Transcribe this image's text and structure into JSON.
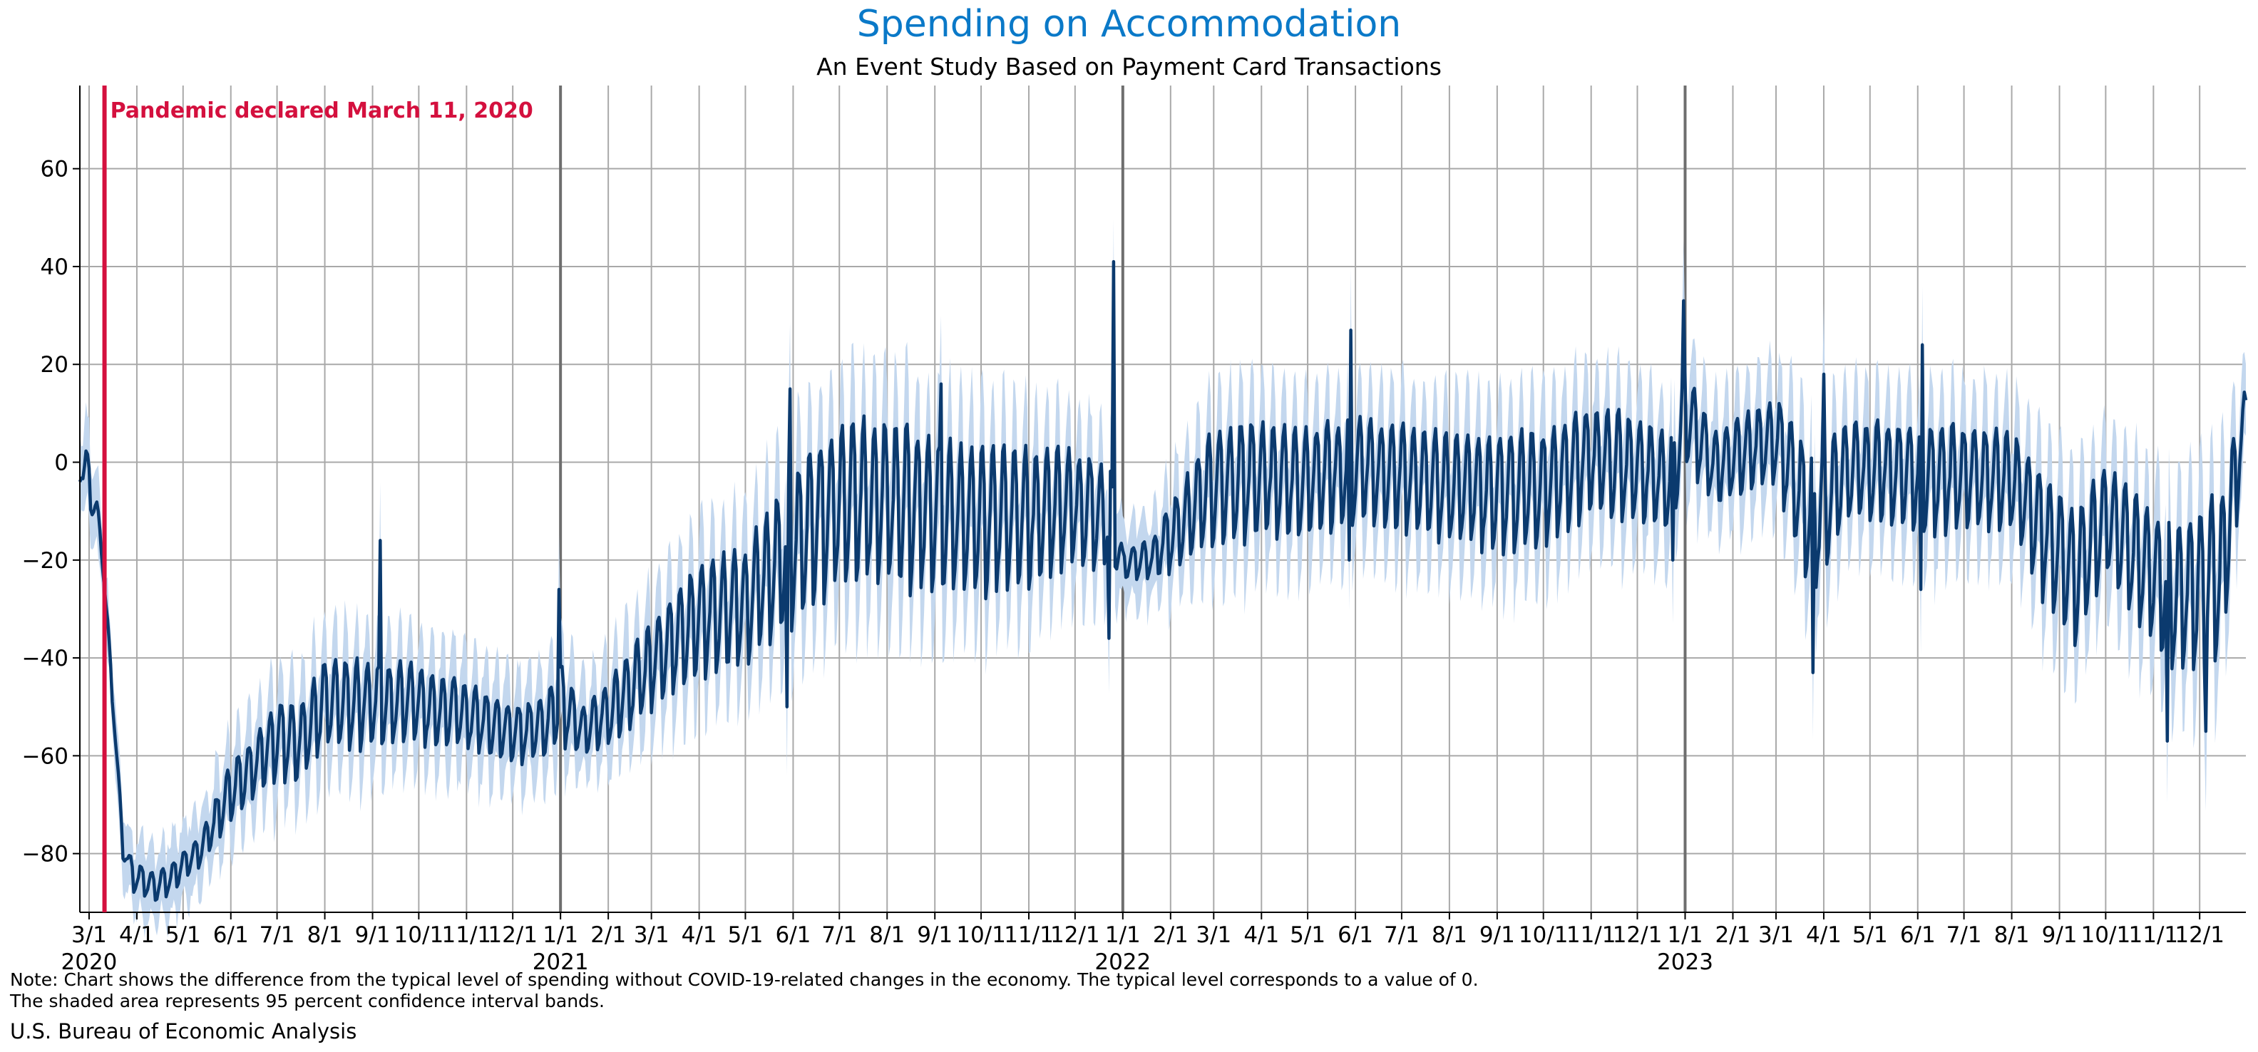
{
  "chart_data": {
    "type": "line",
    "title": "Spending on Accommodation",
    "subtitle": "An Event Study Based on Payment Card Transactions",
    "xlabel": "",
    "ylabel": "",
    "x_range": [
      "2020-02-24",
      "2023-12-31"
    ],
    "ylim": [
      -92,
      77
    ],
    "y_ticks": [
      -80,
      -60,
      -40,
      -20,
      0,
      20,
      40,
      60
    ],
    "grid": true,
    "x_ticks": [
      {
        "date": "2020-03-01",
        "label": "3/1"
      },
      {
        "date": "2020-04-01",
        "label": "4/1"
      },
      {
        "date": "2020-05-01",
        "label": "5/1"
      },
      {
        "date": "2020-06-01",
        "label": "6/1"
      },
      {
        "date": "2020-07-01",
        "label": "7/1"
      },
      {
        "date": "2020-08-01",
        "label": "8/1"
      },
      {
        "date": "2020-09-01",
        "label": "9/1"
      },
      {
        "date": "2020-10-01",
        "label": "10/1"
      },
      {
        "date": "2020-11-01",
        "label": "11/1"
      },
      {
        "date": "2020-12-01",
        "label": "12/1"
      },
      {
        "date": "2021-01-01",
        "label": "1/1"
      },
      {
        "date": "2021-02-01",
        "label": "2/1"
      },
      {
        "date": "2021-03-01",
        "label": "3/1"
      },
      {
        "date": "2021-04-01",
        "label": "4/1"
      },
      {
        "date": "2021-05-01",
        "label": "5/1"
      },
      {
        "date": "2021-06-01",
        "label": "6/1"
      },
      {
        "date": "2021-07-01",
        "label": "7/1"
      },
      {
        "date": "2021-08-01",
        "label": "8/1"
      },
      {
        "date": "2021-09-01",
        "label": "9/1"
      },
      {
        "date": "2021-10-01",
        "label": "10/1"
      },
      {
        "date": "2021-11-01",
        "label": "11/1"
      },
      {
        "date": "2021-12-01",
        "label": "12/1"
      },
      {
        "date": "2022-01-01",
        "label": "1/1"
      },
      {
        "date": "2022-02-01",
        "label": "2/1"
      },
      {
        "date": "2022-03-01",
        "label": "3/1"
      },
      {
        "date": "2022-04-01",
        "label": "4/1"
      },
      {
        "date": "2022-05-01",
        "label": "5/1"
      },
      {
        "date": "2022-06-01",
        "label": "6/1"
      },
      {
        "date": "2022-07-01",
        "label": "7/1"
      },
      {
        "date": "2022-08-01",
        "label": "8/1"
      },
      {
        "date": "2022-09-01",
        "label": "9/1"
      },
      {
        "date": "2022-10-01",
        "label": "10/1"
      },
      {
        "date": "2022-11-01",
        "label": "11/1"
      },
      {
        "date": "2022-12-01",
        "label": "12/1"
      },
      {
        "date": "2023-01-01",
        "label": "1/1"
      },
      {
        "date": "2023-02-01",
        "label": "2/1"
      },
      {
        "date": "2023-03-01",
        "label": "3/1"
      },
      {
        "date": "2023-04-01",
        "label": "4/1"
      },
      {
        "date": "2023-05-01",
        "label": "5/1"
      },
      {
        "date": "2023-06-01",
        "label": "6/1"
      },
      {
        "date": "2023-07-01",
        "label": "7/1"
      },
      {
        "date": "2023-08-01",
        "label": "8/1"
      },
      {
        "date": "2023-09-01",
        "label": "9/1"
      },
      {
        "date": "2023-10-01",
        "label": "10/1"
      },
      {
        "date": "2023-11-01",
        "label": "11/1"
      },
      {
        "date": "2023-12-01",
        "label": "12/1"
      }
    ],
    "year_labels": [
      {
        "date": "2020-03-01",
        "label": "2020"
      },
      {
        "date": "2021-01-01",
        "label": "2021"
      },
      {
        "date": "2022-01-01",
        "label": "2022"
      },
      {
        "date": "2023-01-01",
        "label": "2023"
      }
    ],
    "year_boundaries": [
      "2021-01-01",
      "2022-01-01",
      "2023-01-01"
    ],
    "event": {
      "date": "2020-03-11",
      "label": "Pandemic declared March 11, 2020",
      "color": "#d4103e"
    },
    "line_color": "#0b3a6e",
    "band_color": "#c3d7ee",
    "series": [
      {
        "values_kind": "weekly mean with weekday swing (daily series approximated)",
        "points": [
          {
            "date": "2020-02-24",
            "mean": 0,
            "amp": 4
          },
          {
            "date": "2020-03-02",
            "mean": -5,
            "amp": 6
          },
          {
            "date": "2020-03-09",
            "mean": -17,
            "amp": 2
          },
          {
            "date": "2020-03-16",
            "mean": -47,
            "amp": 2
          },
          {
            "date": "2020-03-23",
            "mean": -79,
            "amp": 2
          },
          {
            "date": "2020-03-30",
            "mean": -85,
            "amp": 3
          },
          {
            "date": "2020-04-06",
            "mean": -86,
            "amp": 3
          },
          {
            "date": "2020-04-13",
            "mean": -87,
            "amp": 3
          },
          {
            "date": "2020-04-20",
            "mean": -86,
            "amp": 3
          },
          {
            "date": "2020-04-27",
            "mean": -84,
            "amp": 3
          },
          {
            "date": "2020-05-04",
            "mean": -82,
            "amp": 3
          },
          {
            "date": "2020-05-11",
            "mean": -80,
            "amp": 3
          },
          {
            "date": "2020-05-18",
            "mean": -76,
            "amp": 4
          },
          {
            "date": "2020-05-25",
            "mean": -72,
            "amp": 5
          },
          {
            "date": "2020-06-01",
            "mean": -68,
            "amp": 6
          },
          {
            "date": "2020-06-15",
            "mean": -63,
            "amp": 6
          },
          {
            "date": "2020-07-01",
            "mean": -57,
            "amp": 8
          },
          {
            "date": "2020-07-15",
            "mean": -58,
            "amp": 8
          },
          {
            "date": "2020-08-01",
            "mean": -50,
            "amp": 9
          },
          {
            "date": "2020-08-15",
            "mean": -50,
            "amp": 9
          },
          {
            "date": "2020-09-01",
            "mean": -50,
            "amp": 9
          },
          {
            "date": "2020-10-01",
            "mean": -50,
            "amp": 8
          },
          {
            "date": "2020-11-01",
            "mean": -52,
            "amp": 7
          },
          {
            "date": "2020-12-01",
            "mean": -56,
            "amp": 6
          },
          {
            "date": "2020-12-20",
            "mean": -55,
            "amp": 6
          },
          {
            "date": "2021-01-01",
            "mean": -50,
            "amp": 8
          },
          {
            "date": "2021-01-15",
            "mean": -55,
            "amp": 5
          },
          {
            "date": "2021-02-01",
            "mean": -52,
            "amp": 7
          },
          {
            "date": "2021-03-01",
            "mean": -42,
            "amp": 9
          },
          {
            "date": "2021-04-01",
            "mean": -33,
            "amp": 12
          },
          {
            "date": "2021-05-01",
            "mean": -30,
            "amp": 12
          },
          {
            "date": "2021-06-01",
            "mean": -18,
            "amp": 16
          },
          {
            "date": "2021-07-01",
            "mean": -10,
            "amp": 17
          },
          {
            "date": "2021-08-01",
            "mean": -9,
            "amp": 17
          },
          {
            "date": "2021-09-01",
            "mean": -12,
            "amp": 16
          },
          {
            "date": "2021-10-01",
            "mean": -13,
            "amp": 15
          },
          {
            "date": "2021-11-01",
            "mean": -12,
            "amp": 14
          },
          {
            "date": "2021-12-01",
            "mean": -10,
            "amp": 12
          },
          {
            "date": "2021-12-24",
            "mean": -12,
            "amp": 10
          },
          {
            "date": "2022-01-01",
            "mean": -21,
            "amp": 3
          },
          {
            "date": "2022-01-20",
            "mean": -20,
            "amp": 4
          },
          {
            "date": "2022-02-01",
            "mean": -16,
            "amp": 7
          },
          {
            "date": "2022-03-01",
            "mean": -6,
            "amp": 12
          },
          {
            "date": "2022-04-01",
            "mean": -4,
            "amp": 12
          },
          {
            "date": "2022-05-01",
            "mean": -5,
            "amp": 11
          },
          {
            "date": "2022-06-01",
            "mean": -2,
            "amp": 11
          },
          {
            "date": "2022-07-01",
            "mean": -4,
            "amp": 11
          },
          {
            "date": "2022-08-01",
            "mean": -6,
            "amp": 11
          },
          {
            "date": "2022-09-01",
            "mean": -7,
            "amp": 12
          },
          {
            "date": "2022-10-01",
            "mean": -6,
            "amp": 12
          },
          {
            "date": "2022-11-01",
            "mean": 0,
            "amp": 11
          },
          {
            "date": "2022-12-01",
            "mean": -2,
            "amp": 11
          },
          {
            "date": "2022-12-24",
            "mean": -5,
            "amp": 10
          },
          {
            "date": "2023-01-01",
            "mean": 10,
            "amp": 10
          },
          {
            "date": "2023-01-20",
            "mean": -2,
            "amp": 8
          },
          {
            "date": "2023-02-01",
            "mean": 0,
            "amp": 8
          },
          {
            "date": "2023-03-01",
            "mean": 4,
            "amp": 9
          },
          {
            "date": "2023-03-25",
            "mean": -14,
            "amp": 14
          },
          {
            "date": "2023-04-15",
            "mean": -3,
            "amp": 10
          },
          {
            "date": "2023-05-01",
            "mean": -2,
            "amp": 10
          },
          {
            "date": "2023-06-01",
            "mean": -4,
            "amp": 11
          },
          {
            "date": "2023-07-01",
            "mean": -4,
            "amp": 11
          },
          {
            "date": "2023-08-01",
            "mean": -4,
            "amp": 10
          },
          {
            "date": "2023-08-20",
            "mean": -15,
            "amp": 13
          },
          {
            "date": "2023-09-10",
            "mean": -25,
            "amp": 14
          },
          {
            "date": "2023-10-01",
            "mean": -12,
            "amp": 11
          },
          {
            "date": "2023-10-20",
            "mean": -20,
            "amp": 13
          },
          {
            "date": "2023-11-15",
            "mean": -30,
            "amp": 16
          },
          {
            "date": "2023-12-15",
            "mean": -25,
            "amp": 18
          },
          {
            "date": "2023-12-31",
            "mean": 10,
            "amp": 5
          }
        ],
        "spikes": [
          {
            "date": "2020-09-06",
            "value": -16
          },
          {
            "date": "2020-12-31",
            "value": -26
          },
          {
            "date": "2021-05-28",
            "value": -50
          },
          {
            "date": "2021-05-30",
            "value": 15
          },
          {
            "date": "2021-09-05",
            "value": 16
          },
          {
            "date": "2021-12-23",
            "value": -36
          },
          {
            "date": "2021-12-26",
            "value": 41
          },
          {
            "date": "2022-05-28",
            "value": -20
          },
          {
            "date": "2022-05-29",
            "value": 27
          },
          {
            "date": "2022-12-24",
            "value": -20
          },
          {
            "date": "2022-12-31",
            "value": 33
          },
          {
            "date": "2023-03-25",
            "value": -43
          },
          {
            "date": "2023-04-01",
            "value": 18
          },
          {
            "date": "2023-06-03",
            "value": -26
          },
          {
            "date": "2023-06-04",
            "value": 24
          },
          {
            "date": "2023-11-10",
            "value": -57
          },
          {
            "date": "2023-12-05",
            "value": -55
          }
        ]
      }
    ]
  },
  "note": {
    "line1": "Note: Chart shows the difference from the typical level of spending without COVID-19-related changes in the economy. The typical level corresponds to a value of 0.",
    "line2": "The shaded area represents 95 percent confidence interval bands."
  },
  "source": "U.S. Bureau of Economic Analysis"
}
